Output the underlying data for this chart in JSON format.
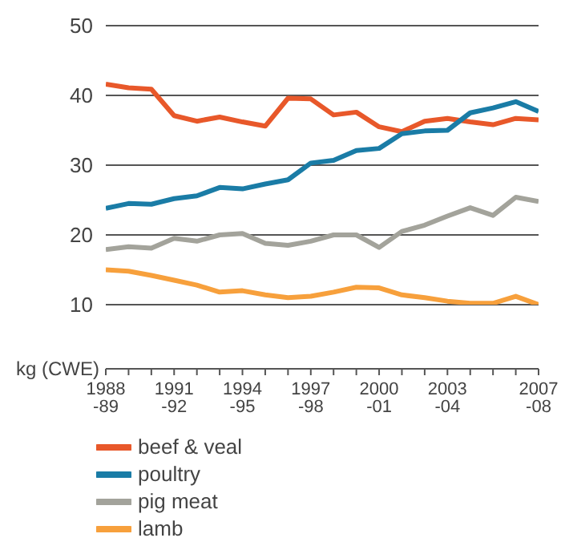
{
  "chart_data": {
    "type": "line",
    "ylabel": "kg (CWE)",
    "categories": [
      "1988-89",
      null,
      null,
      "1991-92",
      null,
      null,
      "1994-95",
      null,
      null,
      "1997-98",
      null,
      null,
      "2000-01",
      null,
      null,
      "2003-04",
      null,
      null,
      null,
      "2007-08"
    ],
    "series": [
      {
        "name": "beef & veal",
        "color": "#e8582a",
        "values": [
          41.6,
          41.1,
          40.9,
          37.1,
          36.3,
          36.9,
          36.2,
          35.6,
          39.6,
          39.5,
          37.2,
          37.6,
          35.5,
          34.8,
          36.3,
          36.7,
          36.2,
          35.8,
          36.7,
          36.5
        ]
      },
      {
        "name": "poultry",
        "color": "#1a7ca6",
        "values": [
          23.8,
          24.5,
          24.4,
          25.2,
          25.6,
          26.8,
          26.6,
          27.3,
          27.9,
          30.3,
          30.7,
          32.1,
          32.4,
          34.5,
          34.9,
          35.0,
          37.5,
          38.2,
          39.1,
          37.7
        ]
      },
      {
        "name": "pig meat",
        "color": "#a3a39b",
        "values": [
          17.9,
          18.3,
          18.1,
          19.5,
          19.1,
          20.0,
          20.2,
          18.8,
          18.5,
          19.1,
          20.0,
          20.0,
          18.2,
          20.5,
          21.4,
          22.7,
          23.9,
          22.8,
          25.4,
          24.8
        ]
      },
      {
        "name": "lamb",
        "color": "#f7a03c",
        "values": [
          15.0,
          14.8,
          14.2,
          13.5,
          12.8,
          11.8,
          12.0,
          11.4,
          11.0,
          11.2,
          11.8,
          12.5,
          12.4,
          11.4,
          11.0,
          10.5,
          10.2,
          10.2,
          11.2,
          10.0
        ]
      }
    ],
    "ylim": [
      10,
      50
    ],
    "yticks": [
      10,
      20,
      30,
      40,
      50
    ],
    "grid": "y",
    "legend": "bottom left",
    "marker": "none",
    "line_style": "solid"
  }
}
